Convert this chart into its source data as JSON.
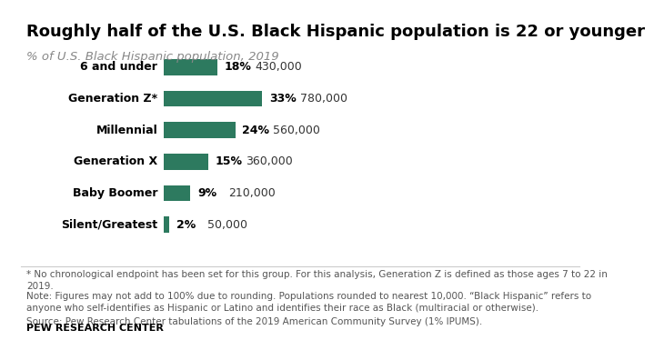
{
  "title": "Roughly half of the U.S. Black Hispanic population is 22 or younger",
  "subtitle": "% of U.S. Black Hispanic population, 2019",
  "categories": [
    "6 and under",
    "Generation Z*",
    "Millennial",
    "Generation X",
    "Baby Boomer",
    "Silent/Greatest"
  ],
  "values": [
    18,
    33,
    24,
    15,
    9,
    2
  ],
  "populations": [
    "430,000",
    "780,000",
    "560,000",
    "360,000",
    "210,000",
    "50,000"
  ],
  "bar_color": "#2d7a5f",
  "background_color": "#ffffff",
  "footnote1": "* No chronological endpoint has been set for this group. For this analysis, Generation Z is defined as those ages 7 to 22 in\n2019.",
  "footnote2": "Note: Figures may not add to 100% due to rounding. Populations rounded to nearest 10,000. “Black Hispanic” refers to\nanyone who self-identifies as Hispanic or Latino and identifies their race as Black (multiracial or otherwise).",
  "footnote3": "Source: Pew Research Center tabulations of the 2019 American Community Survey (1% IPUMS).",
  "branding": "PEW RESEARCH CENTER",
  "title_fontsize": 13,
  "subtitle_fontsize": 9.5,
  "label_fontsize": 9,
  "note_fontsize": 7.5,
  "brand_fontsize": 8
}
